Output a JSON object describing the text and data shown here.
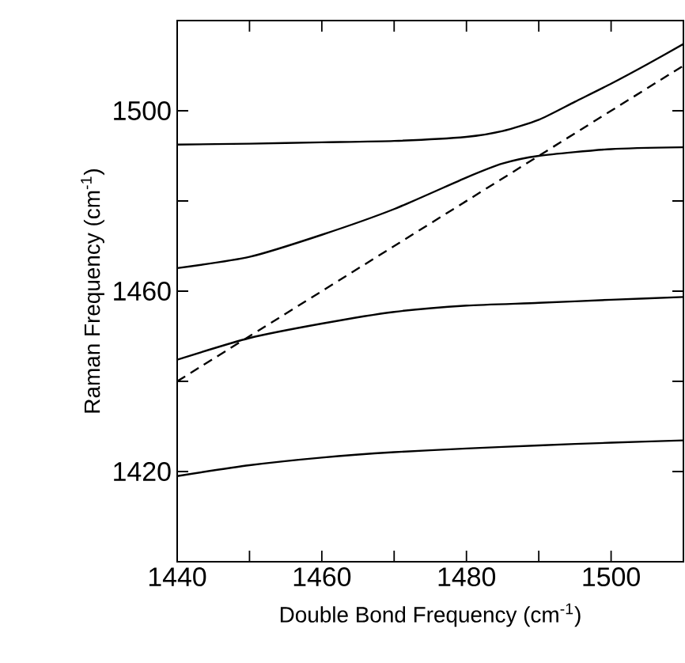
{
  "chart_data": {
    "type": "line",
    "xlabel": "Double Bond Frequency (cm$^{-1}$)",
    "ylabel": "Raman Frequency (cm$^{-1}$)",
    "xlim": [
      1440,
      1510
    ],
    "ylim": [
      1400,
      1520
    ],
    "xticks": [
      1440,
      {
        "value": 1450,
        "label": null
      },
      1460,
      {
        "value": 1470,
        "label": null
      },
      1480,
      {
        "value": 1490,
        "label": null
      },
      1500
    ],
    "yticks": [
      1420,
      {
        "value": 1440,
        "label": null
      },
      1460,
      {
        "value": 1480,
        "label": null
      },
      1500
    ],
    "marker": "none",
    "series": [
      {
        "color": "#000000",
        "line_style": "solid",
        "x": [
          1440,
          1450,
          1460,
          1470,
          1480,
          1485,
          1490,
          1495,
          1500,
          1505,
          1510
        ],
        "values": [
          1492.5,
          1492.7,
          1493,
          1493.3,
          1494.2,
          1495.5,
          1498,
          1502,
          1506,
          1510.3,
          1514.8
        ]
      },
      {
        "color": "#000000",
        "line_style": "solid",
        "x": [
          1440,
          1450,
          1460,
          1470,
          1480,
          1485,
          1490,
          1500,
          1510
        ],
        "values": [
          1465.1,
          1467.6,
          1472.5,
          1478.2,
          1485.2,
          1488.3,
          1490,
          1491.5,
          1491.9
        ]
      },
      {
        "color": "#000000",
        "line_style": "solid",
        "x": [
          1440,
          1450,
          1460,
          1470,
          1480,
          1490,
          1500,
          1510
        ],
        "values": [
          1444.8,
          1449.6,
          1452.8,
          1455.4,
          1456.8,
          1457.4,
          1458.1,
          1458.7
        ]
      },
      {
        "color": "#000000",
        "line_style": "solid",
        "x": [
          1440,
          1450,
          1460,
          1470,
          1480,
          1490,
          1500,
          1510
        ],
        "values": [
          1419,
          1421.4,
          1423.1,
          1424.3,
          1425.1,
          1425.8,
          1426.4,
          1426.9
        ]
      },
      {
        "color": "#000000",
        "line_style": "dashed",
        "x": [
          1440,
          1510
        ],
        "values": [
          1440,
          1510
        ]
      }
    ]
  }
}
